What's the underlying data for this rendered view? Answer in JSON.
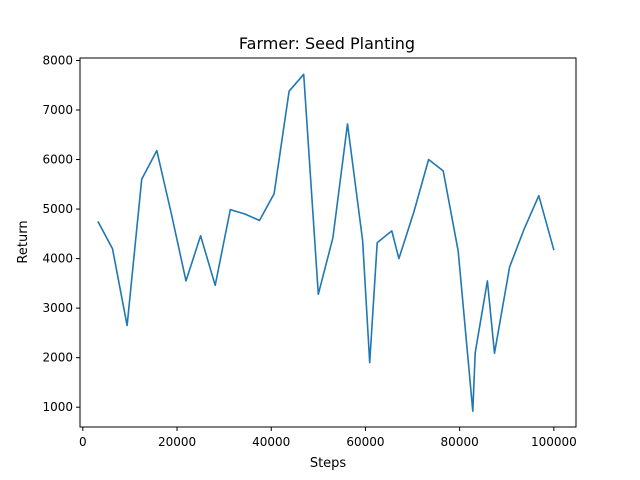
{
  "chart_data": {
    "type": "line",
    "title": "Farmer: Seed Planting",
    "xlabel": "Steps",
    "ylabel": "Return",
    "xlim": [
      -600,
      104700
    ],
    "ylim": [
      600,
      8050
    ],
    "xticks": [
      0,
      20000,
      40000,
      60000,
      80000,
      100000
    ],
    "xtick_labels": [
      "0",
      "20000",
      "40000",
      "60000",
      "80000",
      "100000"
    ],
    "yticks": [
      1000,
      2000,
      3000,
      4000,
      5000,
      6000,
      7000,
      8000
    ],
    "ytick_labels": [
      "1000",
      "2000",
      "3000",
      "4000",
      "5000",
      "6000",
      "7000",
      "8000"
    ],
    "grid": false,
    "series": [
      {
        "color": "#1f77b4",
        "x": [
          3200,
          6300,
          9400,
          12500,
          15700,
          18800,
          21900,
          25000,
          28100,
          31300,
          34400,
          37500,
          40600,
          43800,
          46900,
          50000,
          53100,
          56200,
          59400,
          60900,
          62500,
          65600,
          67100,
          70300,
          73400,
          76500,
          79700,
          82800,
          83300,
          85900,
          87400,
          90600,
          93700,
          96800,
          100000
        ],
        "y": [
          4750,
          4200,
          2650,
          5600,
          6180,
          4900,
          3550,
          4460,
          3460,
          4990,
          4900,
          4770,
          5310,
          7380,
          7720,
          3280,
          4420,
          6720,
          4370,
          1900,
          4320,
          4560,
          4000,
          4950,
          6000,
          5770,
          4150,
          920,
          2100,
          3550,
          2090,
          3830,
          4600,
          5270,
          4170
        ]
      }
    ]
  }
}
